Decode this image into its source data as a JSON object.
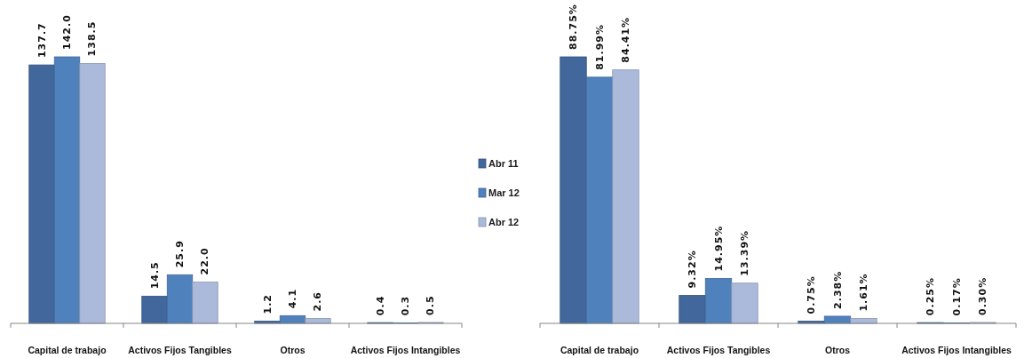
{
  "chart_data": [
    {
      "type": "bar",
      "categories": [
        "Capital de trabajo",
        "Activos Fijos Tangibles",
        "Otros",
        "Activos Fijos Intangibles"
      ],
      "legend": "right",
      "series": [
        {
          "name": "Abr 11",
          "color": "#41679c",
          "values": [
            137.7,
            14.5,
            1.2,
            0.4
          ],
          "value_labels": [
            "137.7",
            "14.5",
            "1.2",
            "0.4"
          ]
        },
        {
          "name": "Mar 12",
          "color": "#4f81bd",
          "values": [
            142.0,
            25.9,
            4.1,
            0.3
          ],
          "value_labels": [
            "142.0",
            "25.9",
            "4.1",
            "0.3"
          ]
        },
        {
          "name": "Abr 12",
          "color": "#abbadb",
          "values": [
            138.5,
            22.0,
            2.6,
            0.5
          ],
          "value_labels": [
            "138.5",
            "22.0",
            "2.6",
            "0.5"
          ]
        }
      ]
    },
    {
      "type": "bar",
      "categories": [
        "Capital de trabajo",
        "Activos Fijos Tangibles",
        "Otros",
        "Activos Fijos Intangibles"
      ],
      "series": [
        {
          "color": "#41679c",
          "values": [
            88.75,
            9.32,
            0.75,
            0.25
          ],
          "value_labels": [
            "88.75%",
            "9.32%",
            "0.75%",
            "0.25%"
          ]
        },
        {
          "color": "#4f81bd",
          "values": [
            81.99,
            14.95,
            2.38,
            0.17
          ],
          "value_labels": [
            "81.99%",
            "14.95%",
            "2.38%",
            "0.17%"
          ]
        },
        {
          "color": "#abbadb",
          "values": [
            84.41,
            13.39,
            1.61,
            0.3
          ],
          "value_labels": [
            "84.41%",
            "13.39%",
            "1.61%",
            "0.30%"
          ]
        }
      ]
    }
  ]
}
